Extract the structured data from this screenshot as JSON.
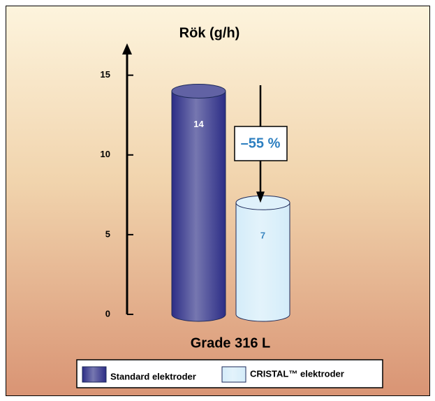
{
  "chart_data": {
    "type": "bar",
    "title": "Rök (g/h)",
    "categories": [
      "Grade 316 L"
    ],
    "series": [
      {
        "name": "Standard elektroder",
        "color": "#2c2d86",
        "label_color": "#ffffff",
        "values": [
          14
        ]
      },
      {
        "name": "CRISTAL™ elektroder",
        "color": "#d4ecf9",
        "label_color": "#3a86c0",
        "values": [
          7
        ]
      }
    ],
    "annotation": "–55 %",
    "ylim": [
      0,
      17
    ],
    "yticks": [
      0,
      5,
      10,
      15
    ]
  }
}
